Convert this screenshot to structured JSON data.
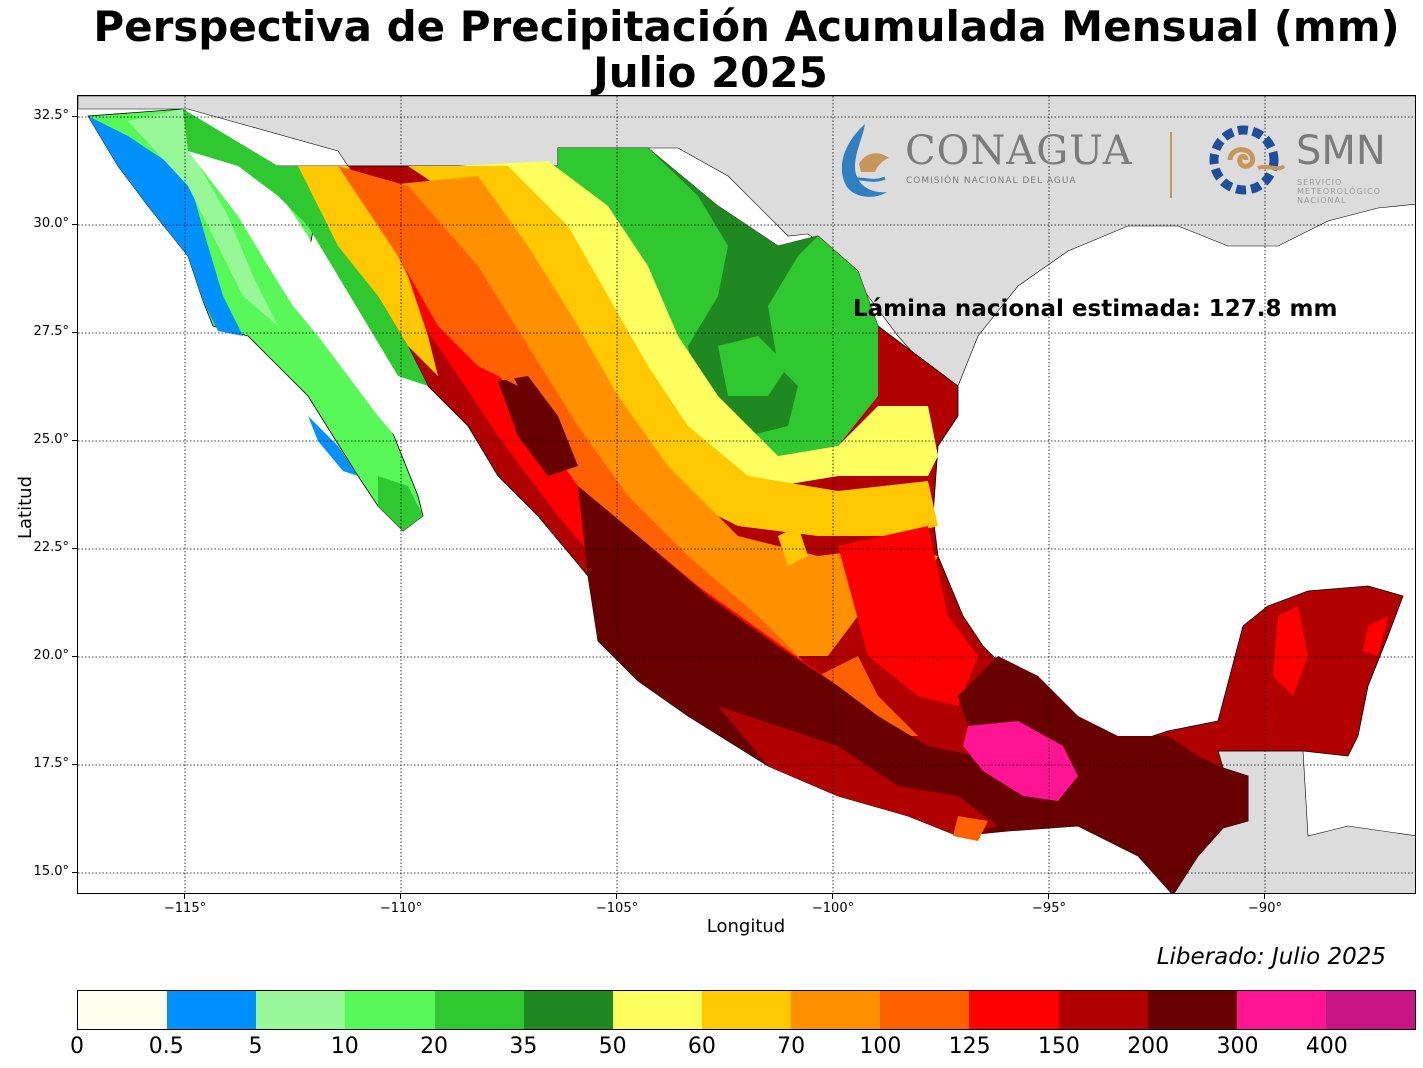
{
  "title": "Perspectiva de Precipitación Acumulada Mensual (mm)",
  "subtitle": "Julio 2025",
  "xlabel": "Longitud",
  "ylabel": "Latitud",
  "released": "Liberado: Julio 2025",
  "annotation": "Lámina nacional estimada: 127.8 mm",
  "logos": {
    "conagua": "CONAGUA",
    "conagua_sub": "COMISIÓN NACIONAL DEL AGUA",
    "smn": "SMN",
    "smn_sub": "SERVICIO METEOROLÓGICO NACIONAL"
  },
  "axes": {
    "lat_ticks": [
      "32.5°",
      "30.0°",
      "27.5°",
      "25.0°",
      "22.5°",
      "20.0°",
      "17.5°",
      "15.0°"
    ],
    "lon_ticks": [
      "−115°",
      "−110°",
      "−105°",
      "−100°",
      "−95°",
      "−90°"
    ],
    "lat_range": [
      14.5,
      33.0
    ],
    "lon_range": [
      -117.5,
      -86.5
    ],
    "grid": true
  },
  "colorbar": {
    "labels": [
      "0",
      "0.5",
      "5",
      "10",
      "20",
      "35",
      "50",
      "60",
      "70",
      "100",
      "125",
      "150",
      "200",
      "300",
      "400"
    ],
    "colors": [
      "#fffff0",
      "#0090ff",
      "#98f898",
      "#58f858",
      "#30c830",
      "#208820",
      "#ffff60",
      "#ffc800",
      "#ff9000",
      "#ff6000",
      "#ff0000",
      "#b00000",
      "#680000",
      "#ff1493",
      "#c71585"
    ]
  },
  "land_color": "#dcdcdc",
  "ocean_color": "#ffffff"
}
